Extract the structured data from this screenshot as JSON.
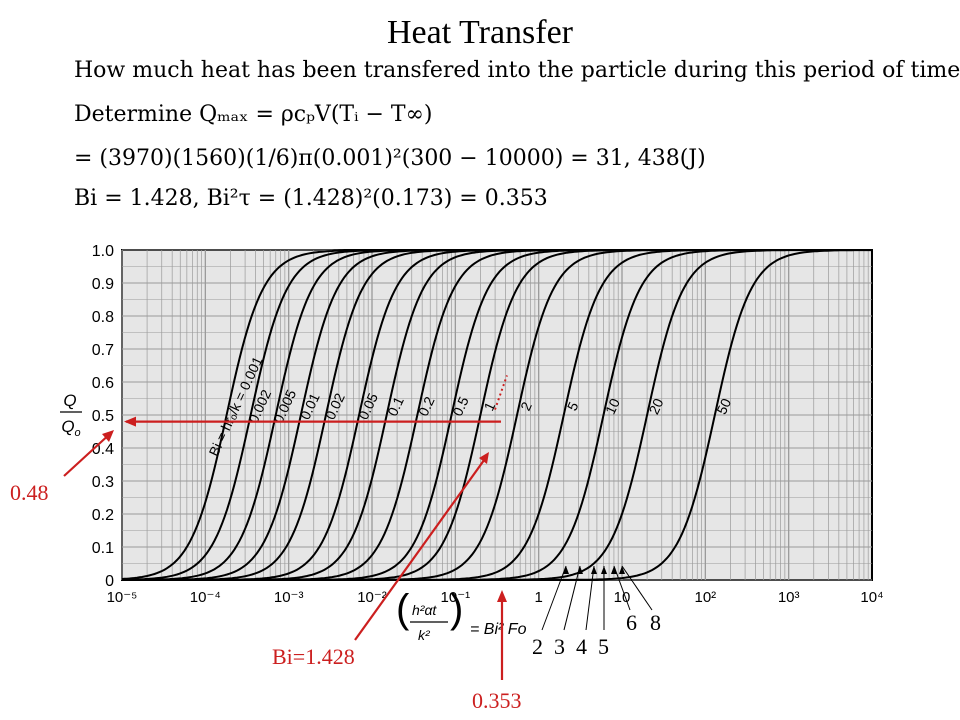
{
  "slide": {
    "title": "Heat Transfer",
    "lines": [
      "How much heat has been transfered into the particle during this period of time?",
      "Determine Qₘₐₓ = ρcₚV(Tᵢ − T∞)",
      "= (3970)(1560)(1/6)π(0.001)²(300 − 10000) = 31, 438(J)",
      "Bi = 1.428,  Bi²τ = (1.428)²(0.173) = 0.353"
    ]
  },
  "annotations": {
    "q_value": "0.48",
    "bi_value": "Bi=1.428",
    "x_value": "0.353",
    "curve_callout_numbers": [
      "2",
      "3",
      "4",
      "5",
      "6",
      "8"
    ]
  },
  "colors": {
    "accent": "#cc1f1f",
    "ink": "#000000",
    "grid": "#9a9a9a",
    "paper": "#e6e6e6"
  },
  "chart_data": {
    "type": "line",
    "ylabel": "Q/Qₒ",
    "xlabel": "(h²αt / k²) = Bi² Fo",
    "x_scale": "log",
    "xlim": [
      1e-05,
      10000
    ],
    "ylim": [
      0,
      1.0
    ],
    "yticks": [
      "0",
      "0.1",
      "0.2",
      "0.3",
      "0.4",
      "0.5",
      "0.6",
      "0.7",
      "0.8",
      "0.9",
      "1.0"
    ],
    "xticks": [
      "10⁻⁵",
      "10⁻⁴",
      "10⁻³",
      "10⁻²",
      "10⁻¹",
      "1",
      "10",
      "10²",
      "10³",
      "10⁴"
    ],
    "grid": true,
    "parameter": "Bi = hrₒ/k",
    "series": [
      {
        "name": "0.001",
        "half_x": 0.00018
      },
      {
        "name": "0.002",
        "half_x": 0.00035
      },
      {
        "name": "0.005",
        "half_x": 0.0007
      },
      {
        "name": "0.01",
        "half_x": 0.0014
      },
      {
        "name": "0.02",
        "half_x": 0.0028
      },
      {
        "name": "0.05",
        "half_x": 0.007
      },
      {
        "name": "0.1",
        "half_x": 0.015
      },
      {
        "name": "0.2",
        "half_x": 0.035
      },
      {
        "name": "0.5",
        "half_x": 0.09
      },
      {
        "name": "1",
        "half_x": 0.2
      },
      {
        "name": "2",
        "half_x": 0.55
      },
      {
        "name": "5",
        "half_x": 2.0
      },
      {
        "name": "10",
        "half_x": 6.0
      },
      {
        "name": "20",
        "half_x": 20
      },
      {
        "name": "50",
        "half_x": 130
      }
    ],
    "bi_label_prefix": "Bi = hrₒ/k = ",
    "readout": {
      "x": 0.353,
      "y": 0.48
    }
  }
}
